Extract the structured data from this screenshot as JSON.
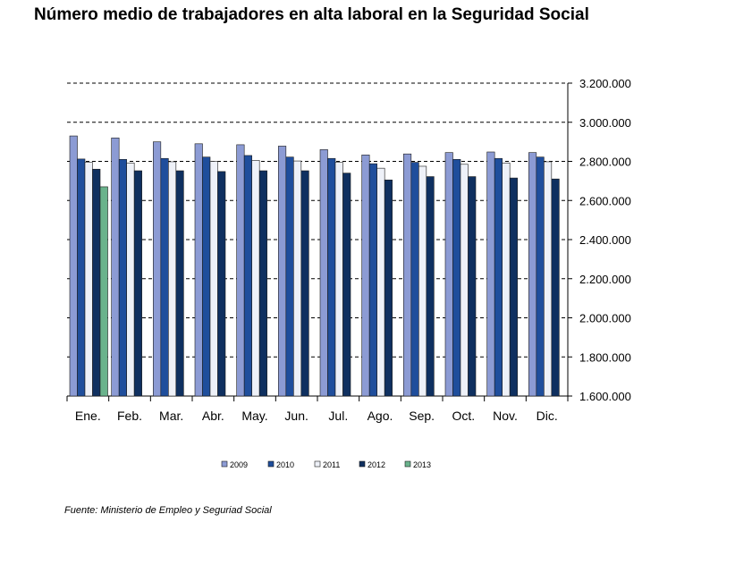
{
  "chart_data": {
    "type": "bar",
    "title": "Número medio de trabajadores en alta laboral en la Seguridad Social",
    "xlabel": "",
    "ylabel": "",
    "source": "Fuente: Ministerio de Empleo y Seguriad Social",
    "categories": [
      "Ene.",
      "Feb.",
      "Mar.",
      "Abr.",
      "May.",
      "Jun.",
      "Jul.",
      "Ago.",
      "Sep.",
      "Oct.",
      "Nov.",
      "Dic."
    ],
    "ylim": [
      1600000,
      3200000
    ],
    "yticks": [
      1600000,
      1800000,
      2000000,
      2200000,
      2400000,
      2600000,
      2800000,
      3000000,
      3200000
    ],
    "ytick_labels": [
      "1.600.000",
      "1.800.000",
      "2.000.000",
      "2.200.000",
      "2.400.000",
      "2.600.000",
      "2.800.000",
      "3.000.000",
      "3.200.000"
    ],
    "grid": "horizontal-dashed",
    "y_axis_position": "right",
    "legend_position": "bottom",
    "series": [
      {
        "name": "2009",
        "color": "#8c9bd4",
        "values": [
          2930000,
          2920000,
          2900000,
          2890000,
          2885000,
          2878000,
          2860000,
          2833000,
          2838000,
          2845000,
          2848000,
          2845000
        ]
      },
      {
        "name": "2010",
        "color": "#1f4e9c",
        "values": [
          2812000,
          2810000,
          2815000,
          2822000,
          2830000,
          2822000,
          2815000,
          2788000,
          2795000,
          2810000,
          2815000,
          2822000
        ]
      },
      {
        "name": "2011",
        "color": "#eef1f8",
        "values": [
          2795000,
          2792000,
          2798000,
          2800000,
          2805000,
          2802000,
          2795000,
          2765000,
          2775000,
          2785000,
          2792000,
          2798000
        ]
      },
      {
        "name": "2012",
        "color": "#0f3060",
        "values": [
          2760000,
          2752000,
          2752000,
          2748000,
          2752000,
          2752000,
          2740000,
          2705000,
          2722000,
          2722000,
          2715000,
          2710000
        ]
      },
      {
        "name": "2013",
        "color": "#6ab38c",
        "values": [
          2670000,
          null,
          null,
          null,
          null,
          null,
          null,
          null,
          null,
          null,
          null,
          null
        ]
      }
    ]
  }
}
